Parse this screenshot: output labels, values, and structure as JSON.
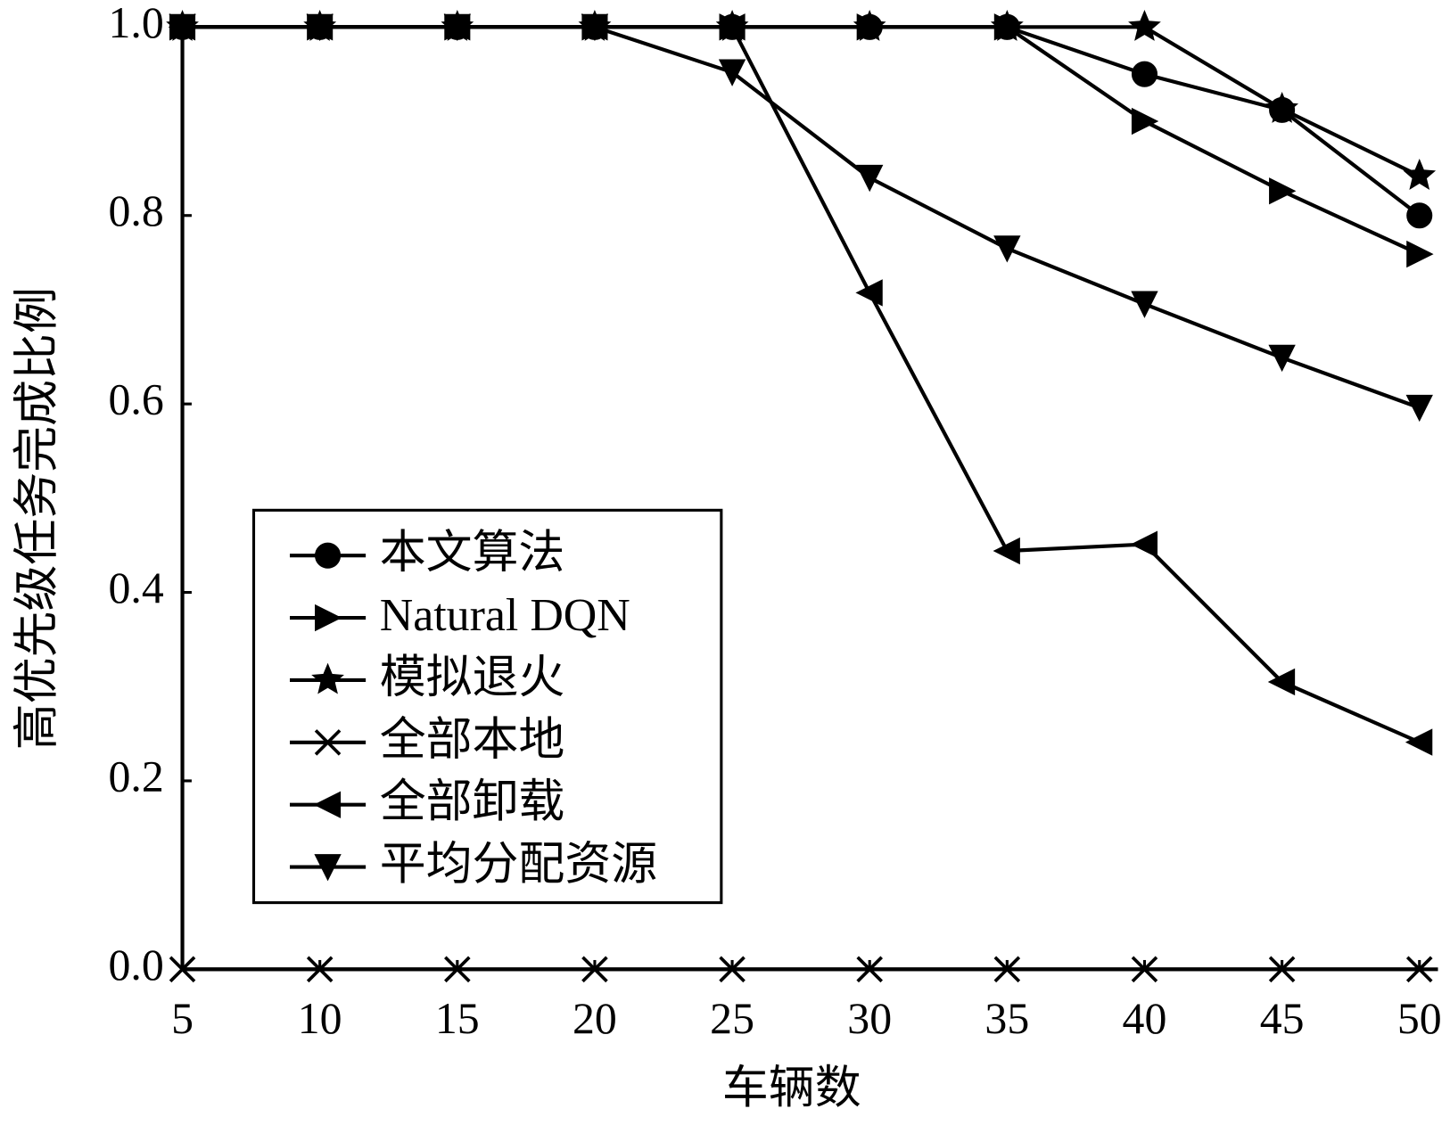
{
  "chart_data": {
    "type": "line",
    "x_label": "车辆数",
    "y_label": "高优先级任务完成比例",
    "x": [
      5,
      10,
      15,
      20,
      25,
      30,
      35,
      40,
      45,
      50
    ],
    "xlim": [
      5,
      50
    ],
    "xticks": [
      5,
      10,
      15,
      20,
      25,
      30,
      35,
      40,
      45,
      50
    ],
    "ylim": [
      0,
      1
    ],
    "yticks": [
      {
        "value": 0,
        "label": "0.0"
      },
      0.2,
      0.4,
      0.6,
      0.8,
      {
        "value": 1,
        "label": "1.0"
      }
    ],
    "grid": false,
    "legend": "lower-left",
    "series": [
      {
        "name": "本文算法",
        "color": "#000000",
        "marker": "circle",
        "values": [
          1,
          1,
          1,
          1,
          1,
          1,
          1,
          0.95,
          0.912,
          0.8
        ]
      },
      {
        "name": "Natural DQN",
        "color": "#000000",
        "marker": "triangle-right",
        "values": [
          1,
          1,
          1,
          1,
          1,
          1,
          1,
          0.9,
          0.826,
          0.759
        ]
      },
      {
        "name": "模拟退火",
        "color": "#000000",
        "marker": "star",
        "values": [
          1,
          1,
          1,
          1,
          1,
          1,
          1,
          1,
          0.913,
          0.842
        ]
      },
      {
        "name": "全部本地",
        "color": "#000000",
        "marker": "x",
        "values": [
          0,
          0,
          0,
          0,
          0,
          0,
          0,
          0,
          0,
          0
        ]
      },
      {
        "name": "全部卸载",
        "color": "#000000",
        "marker": "triangle-left",
        "values": [
          1,
          1,
          1,
          1,
          1,
          0.718,
          0.444,
          0.451,
          0.305,
          0.241
        ]
      },
      {
        "name": "平均分配资源",
        "color": "#000000",
        "marker": "triangle-down",
        "values": [
          1,
          1,
          1,
          1,
          0.952,
          0.84,
          0.765,
          0.706,
          0.649,
          0.596
        ]
      }
    ]
  }
}
